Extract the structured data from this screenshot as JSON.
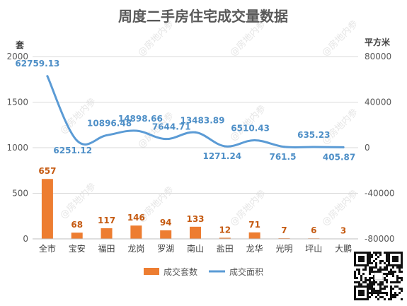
{
  "chart_data": {
    "type": "bar+line",
    "title": "周度二手房住宅成交量数据",
    "left_axis_unit": "套",
    "right_axis_unit": "平方米",
    "categories": [
      "全市",
      "宝安",
      "福田",
      "龙岗",
      "罗湖",
      "南山",
      "盐田",
      "龙华",
      "光明",
      "坪山",
      "大鹏"
    ],
    "series": [
      {
        "name": "成交套数",
        "type": "bar",
        "axis": "left",
        "color": "#ed7d31",
        "values": [
          657,
          68,
          117,
          146,
          94,
          133,
          12,
          71,
          7,
          6,
          3
        ],
        "labels": [
          "657",
          "68",
          "117",
          "146",
          "94",
          "133",
          "12",
          "71",
          "7",
          "6",
          "3"
        ]
      },
      {
        "name": "成交面积",
        "type": "line",
        "axis": "right",
        "color": "#5b9bd5",
        "values": [
          62759.13,
          6251.12,
          10896.48,
          14898.66,
          7644.71,
          13483.89,
          1271.24,
          6510.43,
          761.5,
          635.23,
          405.87
        ],
        "labels": [
          "62759.13",
          "6251.12",
          "10896.48",
          "14898.66",
          "7644.71",
          "13483.89",
          "1271.24",
          "6510.43",
          "761.5",
          "635.23",
          "405.87"
        ]
      }
    ],
    "left_ylim": [
      0,
      2000
    ],
    "left_ticks": [
      "0",
      "500",
      "1000",
      "1500",
      "2000"
    ],
    "right_ylim": [
      -80000,
      80000
    ],
    "right_ticks": [
      "-80000",
      "-40000",
      "0",
      "40000",
      "80000"
    ],
    "grid": true,
    "legend_position": "bottom"
  },
  "watermark": "@房地内参"
}
